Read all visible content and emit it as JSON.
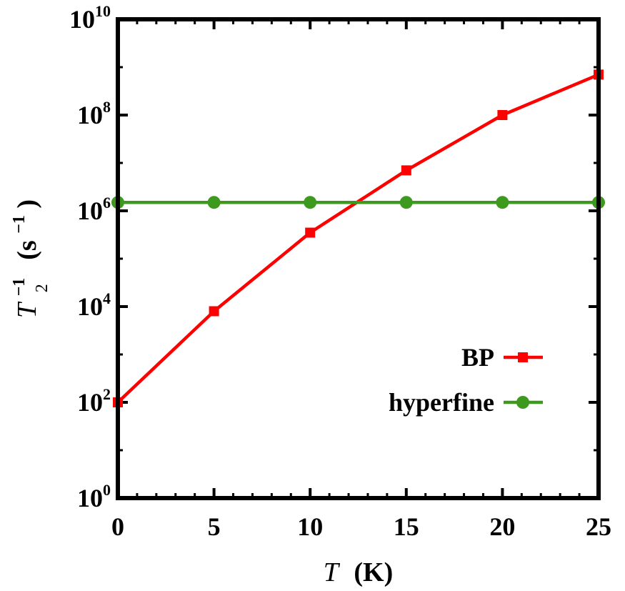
{
  "chart_data": {
    "type": "line",
    "xlabel_symbol": "T",
    "xlabel_unit": "(K)",
    "ylabel_symbol": "T",
    "ylabel_sub": "2",
    "ylabel_sup": "−1",
    "ylabel_unit_open": "(s",
    "ylabel_unit_sup": "−1",
    "ylabel_unit_close": ")",
    "xlim": [
      0,
      25
    ],
    "ylim": [
      1,
      10000000000
    ],
    "yscale": "log",
    "x_ticks": [
      {
        "value": 0,
        "label": "0"
      },
      {
        "value": 5,
        "label": "5"
      },
      {
        "value": 10,
        "label": "10"
      },
      {
        "value": 15,
        "label": "15"
      },
      {
        "value": 20,
        "label": "20"
      },
      {
        "value": 25,
        "label": "25"
      }
    ],
    "y_ticks": [
      {
        "value": 1,
        "base": "10",
        "exp": "0"
      },
      {
        "value": 100,
        "base": "10",
        "exp": "2"
      },
      {
        "value": 10000,
        "base": "10",
        "exp": "4"
      },
      {
        "value": 1000000,
        "base": "10",
        "exp": "6"
      },
      {
        "value": 100000000,
        "base": "10",
        "exp": "8"
      },
      {
        "value": 10000000000,
        "base": "10",
        "exp": "10"
      }
    ],
    "grid": false,
    "legend_position": "lower-right",
    "series": [
      {
        "name": "BP",
        "color": "#ff0000",
        "marker": "square",
        "x": [
          0,
          5,
          10,
          15,
          20,
          25
        ],
        "y": [
          100,
          8000,
          350000,
          7000000,
          100000000,
          700000000
        ]
      },
      {
        "name": "hyperfine",
        "color": "#3d9a1f",
        "marker": "circle",
        "x": [
          0,
          5,
          10,
          15,
          20,
          25
        ],
        "y": [
          1500000,
          1500000,
          1500000,
          1500000,
          1500000,
          1500000
        ]
      }
    ]
  }
}
